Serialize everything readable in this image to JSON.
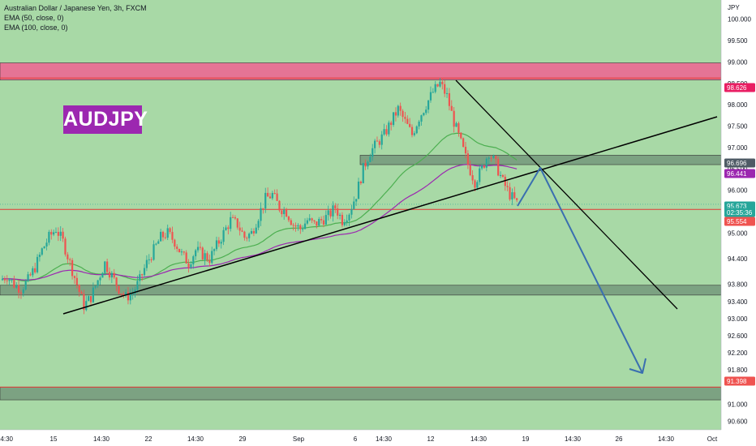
{
  "legend": {
    "symbol_line": "Australian Dollar / Japanese Yen, 3h, FXCM",
    "ema50_line": "EMA (50, close, 0)",
    "ema100_line": "EMA (100, close, 0)"
  },
  "badge": {
    "text": "AUDJPY",
    "color": "#9c27b0"
  },
  "colors": {
    "background": "#a8d9a6",
    "up": "#26a69a",
    "down": "#ef5350",
    "ema50": "#4caf50",
    "ema100": "#9c27b0",
    "resistance_zone": "#f06292",
    "gray_zone": "#6d8f75",
    "trend_line": "#000000",
    "projection_arrow": "#3a6fb0"
  },
  "chart_data": {
    "type": "candlestick",
    "title": "Australian Dollar / Japanese Yen, 3h, FXCM",
    "y_axis_label": "JPY",
    "ylim": [
      90.4,
      100.45
    ],
    "y_ticks": [
      "100.000",
      "99.500",
      "99.000",
      "98.500",
      "98.000",
      "97.500",
      "97.000",
      "96.500",
      "96.000",
      "95.000",
      "94.400",
      "93.800",
      "93.400",
      "93.000",
      "92.600",
      "92.200",
      "91.800",
      "91.000",
      "90.600"
    ],
    "x_ticks": [
      "14:30",
      "15",
      "14:30",
      "22",
      "14:30",
      "29",
      "Sep",
      "6",
      "14:30",
      "12",
      "14:30",
      "19",
      "14:30",
      "26",
      "14:30",
      "Oct"
    ],
    "price_tags": [
      {
        "label": "98.626",
        "value": 98.626,
        "color": "#e91e63"
      },
      {
        "label": "96.696",
        "value": 96.696,
        "color": "#4f5b66"
      },
      {
        "label": "96.441",
        "value": 96.441,
        "color": "#9c27b0"
      },
      {
        "label": "95.673",
        "value": 95.673,
        "color": "#26a69a"
      },
      {
        "label": "02:35:36",
        "value": 95.54,
        "color": "#26a69a"
      },
      {
        "label": "95.554",
        "value": 95.554,
        "color": "#ef5350"
      },
      {
        "label": "91.398",
        "value": 91.398,
        "color": "#ef5350"
      }
    ],
    "zones": [
      {
        "name": "resistance",
        "from": 98.58,
        "to": 98.98
      },
      {
        "name": "mid",
        "from": 96.6,
        "to": 96.82
      },
      {
        "name": "support",
        "from": 93.55,
        "to": 93.78
      },
      {
        "name": "lower",
        "from": 91.1,
        "to": 91.4
      }
    ],
    "lines": [
      {
        "name": "resistance-line",
        "value": 98.626
      },
      {
        "name": "support-line",
        "value": 95.554
      },
      {
        "name": "lower-support-line",
        "value": 91.398
      }
    ],
    "price_path": [
      93.9,
      94.0,
      93.8,
      93.7,
      93.9,
      94.2,
      94.6,
      94.9,
      95.1,
      94.8,
      94.3,
      93.8,
      93.3,
      93.5,
      93.9,
      94.3,
      94.0,
      93.7,
      93.5,
      93.6,
      93.9,
      94.3,
      94.6,
      94.9,
      95.0,
      94.8,
      94.5,
      94.3,
      94.6,
      94.5,
      94.4,
      94.7,
      95.0,
      95.3,
      95.2,
      94.9,
      95.0,
      95.4,
      95.8,
      95.9,
      95.6,
      95.5,
      95.2,
      95.1,
      95.3,
      95.2,
      95.3,
      95.4,
      95.6,
      95.3,
      95.5,
      95.9,
      96.5,
      96.9,
      97.1,
      97.3,
      97.6,
      97.9,
      97.6,
      97.3,
      97.7,
      98.0,
      98.3,
      98.5,
      98.2,
      97.6,
      97.1,
      96.6,
      96.2,
      96.5,
      96.9,
      96.6,
      96.2,
      95.9,
      95.7
    ]
  }
}
